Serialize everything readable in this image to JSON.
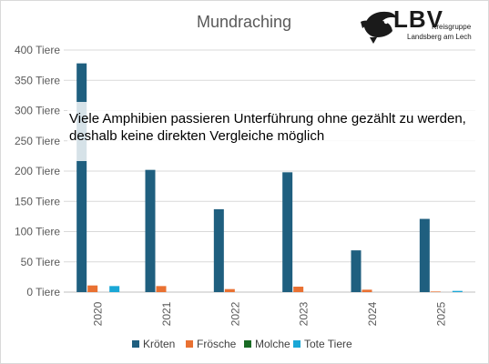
{
  "chart_data": {
    "type": "bar",
    "title": "Mundraching",
    "categories": [
      "2020",
      "2021",
      "2022",
      "2023",
      "2024",
      "2025"
    ],
    "series": [
      {
        "name": "Kröten",
        "color": "#1f5f7f",
        "values": [
          378,
          202,
          137,
          198,
          69,
          121
        ]
      },
      {
        "name": "Frösche",
        "color": "#e97132",
        "values": [
          11,
          10,
          5,
          9,
          4,
          1
        ]
      },
      {
        "name": "Molche",
        "color": "#196b24",
        "values": [
          0,
          0,
          0,
          0,
          0,
          0
        ]
      },
      {
        "name": "Tote Tiere",
        "color": "#1aa7d6",
        "values": [
          10,
          0,
          0,
          0,
          0,
          2
        ]
      }
    ],
    "ylim": [
      0,
      400
    ],
    "yticks": [
      0,
      50,
      100,
      150,
      200,
      250,
      300,
      350,
      400
    ],
    "ytick_labels": [
      "0 Tiere",
      "50 Tiere",
      "100 Tiere",
      "150 Tiere",
      "200 Tiere",
      "250 Tiere",
      "300 Tiere",
      "350 Tiere",
      "400 Tiere"
    ],
    "grid": true,
    "legend_position": "bottom",
    "annotation": [
      "Viele Amphibien passieren Unterführung ohne gezählt zu werden,",
      "deshalb keine direkten Vergleiche möglich"
    ]
  },
  "logo": {
    "name": "LBV",
    "sub_line1": "Kreisgruppe",
    "sub_line2": "Landsberg am Lech"
  }
}
